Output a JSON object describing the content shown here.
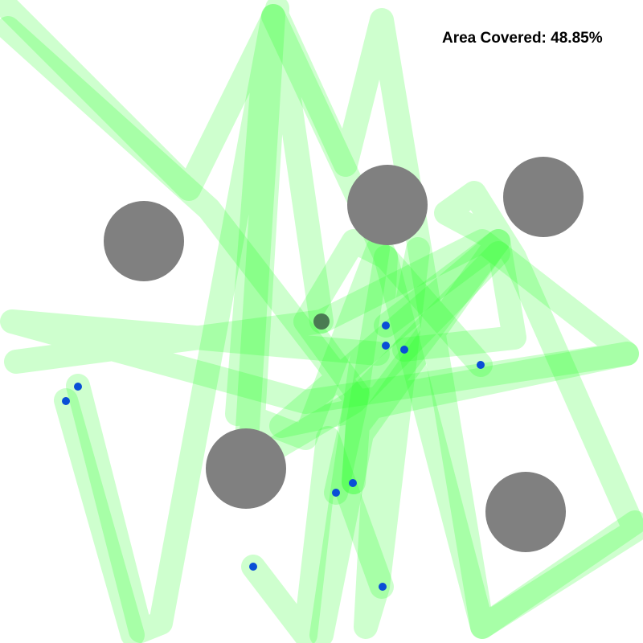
{
  "hud": {
    "area_label": "Area Covered: 48.85%",
    "area_percent": 48.85
  },
  "colors": {
    "background": "#ffffff",
    "trail": "#22ff22",
    "obstacle": "#808080",
    "agent": "#0a4fd6",
    "spawn": "#4a7a52",
    "text": "#000000"
  }
}
